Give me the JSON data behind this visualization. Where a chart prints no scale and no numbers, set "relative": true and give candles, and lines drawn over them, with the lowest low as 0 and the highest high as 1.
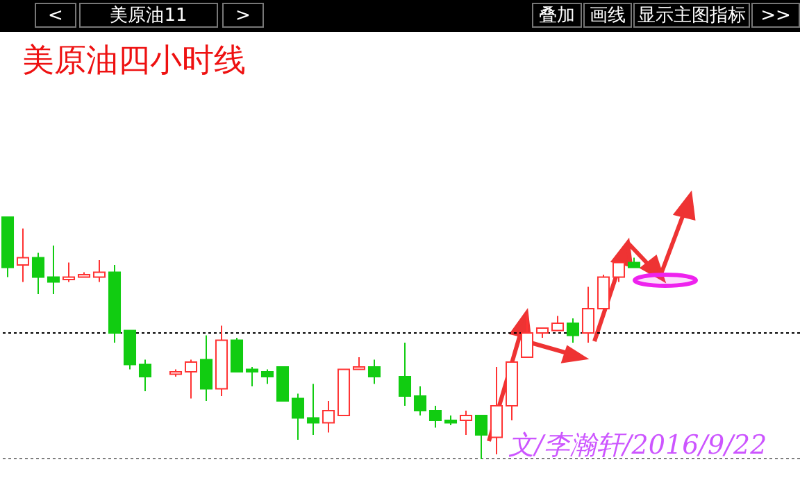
{
  "chart_data": {
    "type": "candlestick",
    "title": "美原油四小时线",
    "relative": true,
    "annotations": [
      "<",
      "美原油11",
      ">",
      "叠加",
      "画线",
      "显示主图指标",
      ">>",
      "文/李瀚轩/2016/9/22"
    ],
    "categories": [
      null,
      null,
      null,
      null,
      null,
      null,
      null,
      null,
      null,
      null,
      null,
      null,
      null,
      null,
      null,
      null,
      null,
      null,
      null,
      null,
      null,
      null,
      null,
      null,
      null,
      null,
      null,
      null,
      null,
      null,
      null,
      null,
      null,
      null,
      null,
      null,
      null,
      null,
      null,
      null,
      null,
      null
    ],
    "ohlc": [
      [
        1.0,
        1.0,
        0.75,
        0.79
      ],
      [
        0.8,
        0.95,
        0.73,
        0.83
      ],
      [
        0.83,
        0.85,
        0.68,
        0.75
      ],
      [
        0.75,
        0.88,
        0.68,
        0.73
      ],
      [
        0.74,
        0.81,
        0.73,
        0.75
      ],
      [
        0.75,
        0.77,
        0.75,
        0.76
      ],
      [
        0.75,
        0.82,
        0.73,
        0.77
      ],
      [
        0.77,
        0.8,
        0.48,
        0.52
      ],
      [
        0.53,
        0.53,
        0.37,
        0.39
      ],
      [
        0.39,
        0.41,
        0.28,
        0.34
      ],
      null,
      [
        0.35,
        0.37,
        0.34,
        0.36
      ],
      [
        0.36,
        0.41,
        0.25,
        0.4
      ],
      [
        0.41,
        0.51,
        0.24,
        0.29
      ],
      [
        0.29,
        0.55,
        0.26,
        0.49
      ],
      [
        0.49,
        0.5,
        0.36,
        0.36
      ],
      [
        0.37,
        0.38,
        0.3,
        0.36
      ],
      [
        0.36,
        0.37,
        0.31,
        0.34
      ],
      [
        0.38,
        0.38,
        0.24,
        0.24
      ],
      [
        0.25,
        0.27,
        0.08,
        0.17
      ],
      [
        0.17,
        0.31,
        0.1,
        0.15
      ],
      [
        0.15,
        0.24,
        0.11,
        0.2
      ],
      [
        0.18,
        0.37,
        0.18,
        0.37
      ],
      [
        0.37,
        0.42,
        0.37,
        0.38
      ],
      [
        0.38,
        0.41,
        0.31,
        0.34
      ],
      null,
      [
        0.34,
        0.48,
        0.22,
        0.26
      ],
      [
        0.26,
        0.3,
        0.18,
        0.2
      ],
      [
        0.2,
        0.22,
        0.13,
        0.16
      ],
      [
        0.16,
        0.18,
        0.14,
        0.15
      ],
      [
        0.16,
        0.2,
        0.1,
        0.18
      ],
      [
        0.18,
        0.18,
        0.0,
        0.1
      ],
      [
        0.09,
        0.38,
        0.02,
        0.22
      ],
      [
        0.22,
        0.4,
        0.16,
        0.4
      ],
      [
        0.42,
        0.6,
        0.42,
        0.52
      ],
      [
        0.52,
        0.54,
        0.5,
        0.54
      ],
      [
        0.53,
        0.59,
        0.53,
        0.56
      ],
      [
        0.56,
        0.58,
        0.48,
        0.51
      ],
      [
        0.52,
        0.71,
        0.48,
        0.62
      ],
      [
        0.62,
        0.76,
        0.62,
        0.75
      ],
      [
        0.75,
        0.81,
        0.73,
        0.81
      ],
      [
        0.81,
        0.83,
        0.79,
        0.79
      ]
    ],
    "colors": [
      "#11cc11",
      "#ff3333",
      "#11cc11",
      "#11cc11",
      "#ff3333",
      "#ff3333",
      "#ff3333",
      "#11cc11",
      "#11cc11",
      "#11cc11",
      null,
      "#ff3333",
      "#ff3333",
      "#11cc11",
      "#ff3333",
      "#11cc11",
      "#11cc11",
      "#11cc11",
      "#11cc11",
      "#11cc11",
      "#11cc11",
      "#ff3333",
      "#ff3333",
      "#ff3333",
      "#11cc11",
      null,
      "#11cc11",
      "#11cc11",
      "#11cc11",
      "#11cc11",
      "#ff3333",
      "#11cc11",
      "#ff3333",
      "#ff3333",
      "#ff3333",
      "#ff3333",
      "#ff3333",
      "#11cc11",
      "#ff3333",
      "#ff3333",
      "#ff3333",
      "#11cc11"
    ],
    "ref_lines": [
      {
        "axis": "y",
        "value": 0.52,
        "color": "#000000",
        "line_style": "dotted"
      },
      {
        "axis": "y",
        "value": 0,
        "color": "#000000",
        "line_style": "dotted"
      }
    ]
  }
}
